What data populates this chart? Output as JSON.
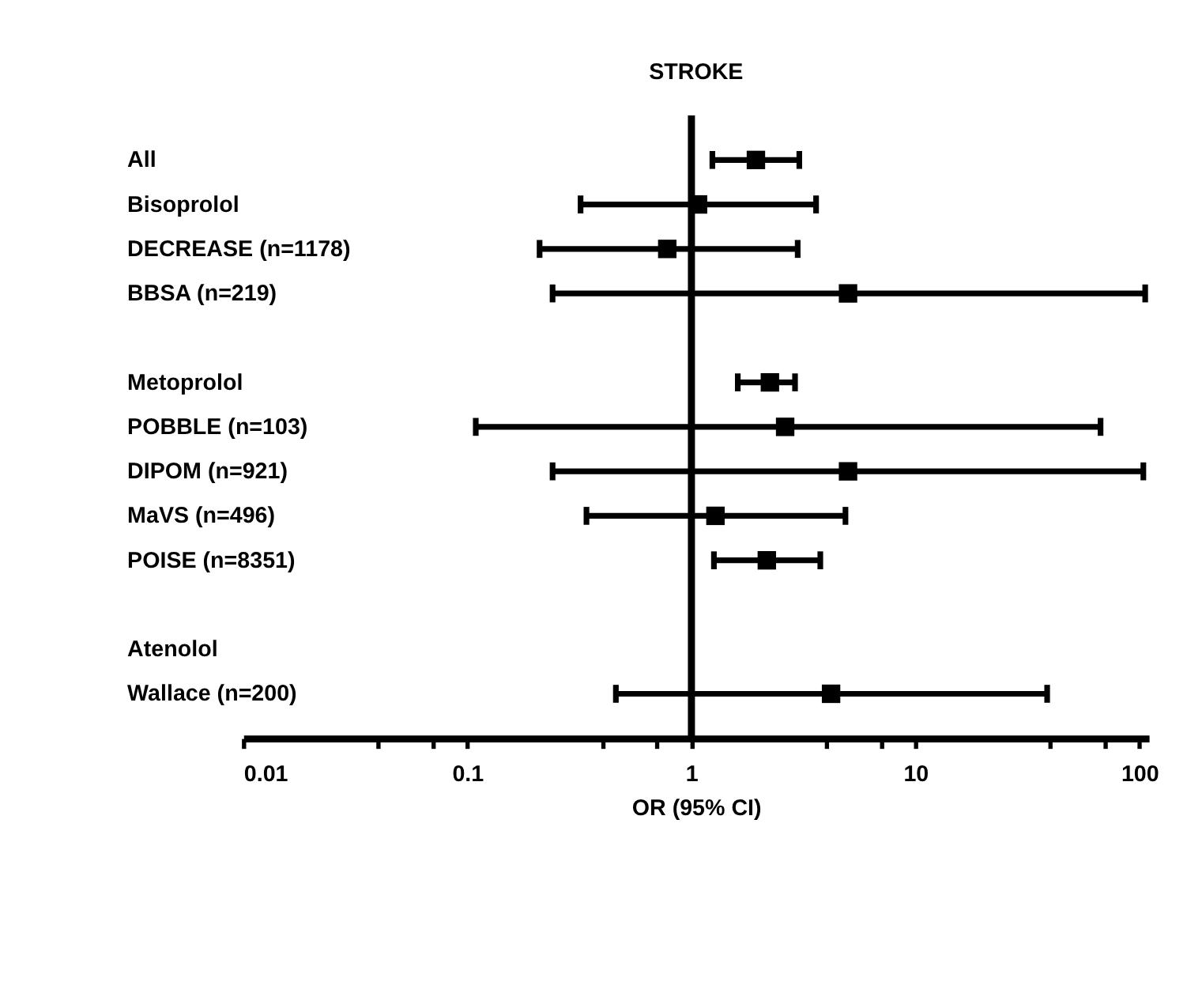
{
  "chart_data": {
    "type": "scatter",
    "orientation": "horizontal",
    "title": "STROKE",
    "xlabel": "OR (95% CI)",
    "categories": [
      "All",
      "Bisoprolol",
      "DECREASE (n=1178)",
      "BBSA (n=219)",
      null,
      "Metoprolol",
      "POBBLE (n=103)",
      "DIPOM (n=921)",
      "MaVS (n=496)",
      "POISE (n=8351)",
      null,
      "Atenolol",
      "Wallace (n=200)"
    ],
    "series": [
      {
        "color": "#000000",
        "values": [
          1.94,
          1.07,
          0.78,
          5.0,
          null,
          2.24,
          2.62,
          5.0,
          1.28,
          2.17,
          null,
          null,
          4.2
        ],
        "errors": [
          [
            1.24,
            3.03
          ],
          [
            0.32,
            3.6
          ],
          [
            0.21,
            2.98
          ],
          [
            0.24,
            106
          ],
          null,
          [
            1.61,
            2.9
          ],
          [
            0.109,
            67
          ],
          [
            0.24,
            104
          ],
          [
            0.34,
            4.87
          ],
          [
            1.26,
            3.76
          ],
          null,
          null,
          [
            0.46,
            38.7
          ]
        ]
      }
    ],
    "log": "x",
    "marker": "square",
    "xlim": [
      0.01,
      110
    ],
    "xticks": [
      0.01,
      {
        "value": 0.04,
        "label": null
      },
      {
        "value": 0.07,
        "label": null
      },
      0.1,
      {
        "value": 0.4,
        "label": null
      },
      {
        "value": 0.7,
        "label": null
      },
      1,
      {
        "value": 4,
        "label": null
      },
      {
        "value": 7,
        "label": null
      },
      10,
      {
        "value": 40,
        "label": null
      },
      {
        "value": 70,
        "label": null
      },
      100
    ],
    "ref_lines": [
      {
        "axis": "x",
        "value": 1,
        "color": "#000000"
      }
    ],
    "grid": false
  }
}
